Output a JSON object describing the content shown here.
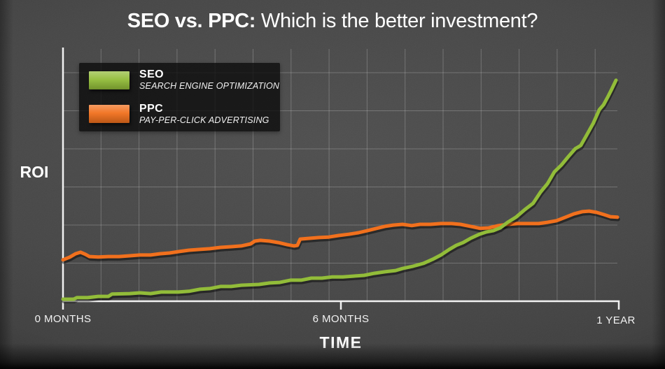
{
  "title": {
    "bold": "SEO vs. PPC:",
    "regular": " Which is the better investment?"
  },
  "legend": {
    "items": [
      {
        "name": "SEO",
        "description": "SEARCH ENGINE OPTIMIZATION",
        "color": "#92bc39"
      },
      {
        "name": "PPC",
        "description": "PAY-PER-CLICK ADVERTISING",
        "color": "#f1701d"
      }
    ]
  },
  "axes": {
    "y_label": "ROI",
    "x_label": "TIME",
    "x_tick_labels": [
      "0 MONTHS",
      "6 MONTHS",
      "1 YEAR"
    ]
  },
  "colors": {
    "background": "#474747",
    "grid": "rgba(255,255,255,0.22)",
    "axis": "#f2f2f2",
    "seo_line": "#92bc39",
    "ppc_line": "#f1701d",
    "legend_bg": "rgba(10,10,10,0.78)"
  },
  "chart_data": {
    "type": "line",
    "title": "SEO vs. PPC: Which is the better investment?",
    "xlabel": "TIME",
    "ylabel": "ROI",
    "x_unit": "months",
    "xlim": [
      0,
      12
    ],
    "ylim": [
      0,
      100
    ],
    "grid": true,
    "legend_position": "top-left",
    "x_tick_labels": [
      {
        "x": 0,
        "label": "0 MONTHS"
      },
      {
        "x": 6,
        "label": "6 MONTHS"
      },
      {
        "x": 12,
        "label": "1 YEAR"
      }
    ],
    "note": "Y axis has no numeric ticks; ROI values are normalized estimates 0-100 read from pixel positions. SEO grows slowly then exponentially; PPC rises modestly, plateaus and dips at year end. Lines cross at about 9.4 months.",
    "series": [
      {
        "name": "SEO",
        "full_name": "SEARCH ENGINE OPTIMIZATION",
        "color": "#92bc39",
        "points": [
          [
            0,
            0.8
          ],
          [
            0.23,
            0.8
          ],
          [
            0.3,
            1.4
          ],
          [
            0.53,
            1.4
          ],
          [
            0.76,
            1.9
          ],
          [
            0.98,
            1.9
          ],
          [
            1.06,
            2.8
          ],
          [
            1.44,
            3.0
          ],
          [
            1.66,
            3.3
          ],
          [
            1.89,
            3.0
          ],
          [
            2.12,
            3.6
          ],
          [
            2.49,
            3.6
          ],
          [
            2.72,
            3.9
          ],
          [
            2.95,
            4.7
          ],
          [
            3.17,
            5.0
          ],
          [
            3.4,
            5.8
          ],
          [
            3.63,
            5.8
          ],
          [
            3.85,
            6.3
          ],
          [
            4.23,
            6.6
          ],
          [
            4.46,
            7.2
          ],
          [
            4.68,
            7.4
          ],
          [
            4.91,
            8.3
          ],
          [
            5.14,
            8.3
          ],
          [
            5.36,
            9.1
          ],
          [
            5.59,
            9.1
          ],
          [
            5.82,
            9.6
          ],
          [
            6.04,
            9.6
          ],
          [
            6.27,
            9.9
          ],
          [
            6.5,
            10.2
          ],
          [
            6.72,
            11.0
          ],
          [
            6.95,
            11.6
          ],
          [
            7.18,
            12.1
          ],
          [
            7.33,
            12.9
          ],
          [
            7.56,
            13.8
          ],
          [
            7.78,
            14.9
          ],
          [
            7.98,
            16.5
          ],
          [
            8.16,
            18.2
          ],
          [
            8.34,
            20.4
          ],
          [
            8.49,
            22.0
          ],
          [
            8.64,
            23.1
          ],
          [
            8.8,
            24.8
          ],
          [
            8.99,
            26.4
          ],
          [
            9.14,
            27.3
          ],
          [
            9.29,
            27.8
          ],
          [
            9.44,
            28.9
          ],
          [
            9.6,
            31.1
          ],
          [
            9.78,
            33.1
          ],
          [
            9.97,
            36.1
          ],
          [
            10.15,
            38.6
          ],
          [
            10.31,
            43.0
          ],
          [
            10.46,
            46.3
          ],
          [
            10.61,
            51.0
          ],
          [
            10.76,
            53.7
          ],
          [
            10.91,
            57.0
          ],
          [
            11.06,
            60.1
          ],
          [
            11.18,
            61.4
          ],
          [
            11.3,
            65.3
          ],
          [
            11.45,
            70.2
          ],
          [
            11.58,
            75.5
          ],
          [
            11.67,
            77.4
          ],
          [
            11.76,
            80.4
          ],
          [
            11.85,
            83.7
          ],
          [
            11.94,
            87.1
          ]
        ]
      },
      {
        "name": "PPC",
        "full_name": "PAY-PER-CLICK ADVERTISING",
        "color": "#f1701d",
        "points": [
          [
            0,
            16.3
          ],
          [
            0.15,
            17.4
          ],
          [
            0.27,
            18.7
          ],
          [
            0.38,
            19.3
          ],
          [
            0.48,
            18.5
          ],
          [
            0.57,
            17.6
          ],
          [
            0.76,
            17.4
          ],
          [
            0.98,
            17.6
          ],
          [
            1.21,
            17.6
          ],
          [
            1.44,
            17.9
          ],
          [
            1.66,
            18.2
          ],
          [
            1.89,
            18.2
          ],
          [
            2.09,
            18.7
          ],
          [
            2.3,
            19.0
          ],
          [
            2.51,
            19.6
          ],
          [
            2.72,
            20.1
          ],
          [
            2.95,
            20.4
          ],
          [
            3.17,
            20.7
          ],
          [
            3.4,
            21.2
          ],
          [
            3.63,
            21.5
          ],
          [
            3.85,
            21.8
          ],
          [
            4.05,
            22.6
          ],
          [
            4.14,
            23.7
          ],
          [
            4.26,
            24.0
          ],
          [
            4.46,
            23.7
          ],
          [
            4.65,
            23.1
          ],
          [
            4.84,
            22.3
          ],
          [
            4.99,
            21.8
          ],
          [
            5.06,
            22.0
          ],
          [
            5.12,
            24.5
          ],
          [
            5.32,
            24.8
          ],
          [
            5.53,
            25.1
          ],
          [
            5.74,
            25.3
          ],
          [
            5.95,
            25.9
          ],
          [
            6.17,
            26.4
          ],
          [
            6.38,
            27.0
          ],
          [
            6.57,
            27.8
          ],
          [
            6.77,
            28.7
          ],
          [
            6.95,
            29.5
          ],
          [
            7.13,
            30.0
          ],
          [
            7.33,
            30.3
          ],
          [
            7.53,
            29.8
          ],
          [
            7.71,
            30.3
          ],
          [
            7.93,
            30.3
          ],
          [
            8.16,
            30.6
          ],
          [
            8.39,
            30.6
          ],
          [
            8.58,
            30.3
          ],
          [
            8.8,
            29.5
          ],
          [
            9.01,
            28.7
          ],
          [
            9.19,
            28.9
          ],
          [
            9.4,
            29.8
          ],
          [
            9.6,
            30.3
          ],
          [
            9.82,
            30.6
          ],
          [
            10.05,
            30.6
          ],
          [
            10.27,
            30.6
          ],
          [
            10.46,
            31.1
          ],
          [
            10.65,
            31.7
          ],
          [
            10.85,
            33.1
          ],
          [
            11.03,
            34.4
          ],
          [
            11.21,
            35.3
          ],
          [
            11.36,
            35.5
          ],
          [
            11.52,
            35.0
          ],
          [
            11.67,
            34.2
          ],
          [
            11.82,
            33.3
          ],
          [
            11.97,
            33.1
          ]
        ]
      }
    ]
  }
}
